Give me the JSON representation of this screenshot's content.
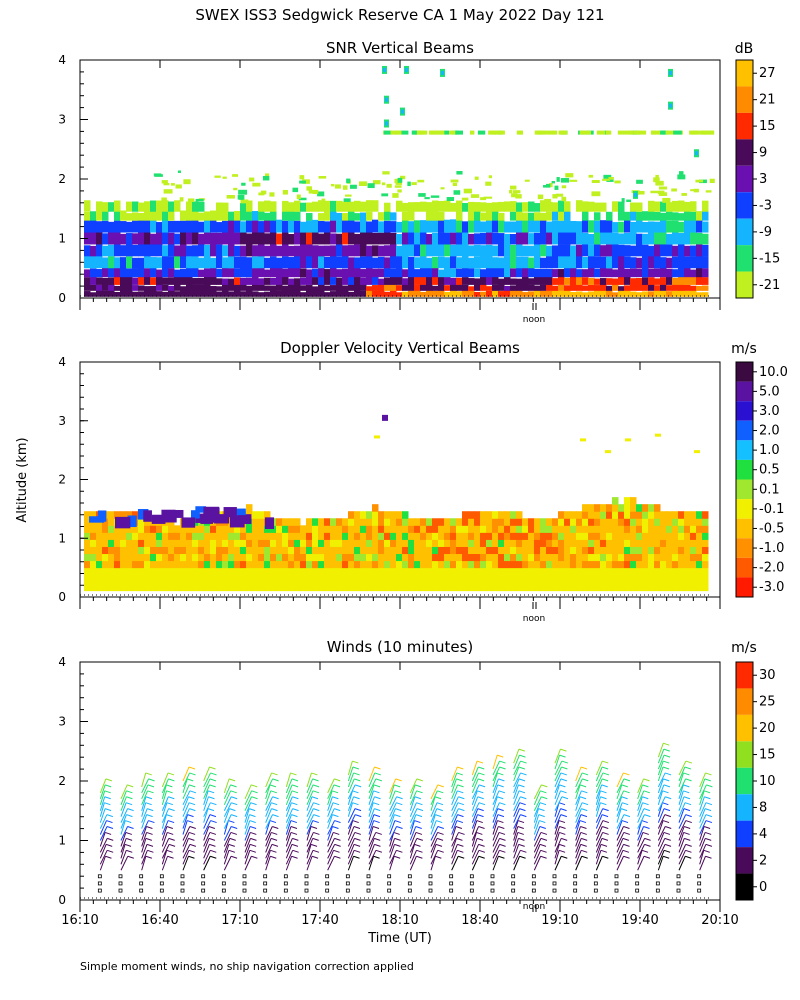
{
  "title": "SWEX ISS3 Sedgwick Reserve CA   1 May 2022 Day 121",
  "footnote": "Simple moment winds, no ship navigation correction applied",
  "y_axis_label": "Altitude (km)",
  "x_axis_label": "Time (UT)",
  "noon_label": "noon",
  "chart_data": [
    {
      "type": "heatmap",
      "title": "SNR Vertical Beams",
      "ylabel": "Altitude (km)",
      "xlabel": "",
      "x_range": [
        "16:10",
        "20:10"
      ],
      "ylim": [
        0,
        4
      ],
      "y_ticks": [
        0,
        1,
        2,
        3,
        4
      ],
      "colorbar": {
        "unit": "dB",
        "labels": [
          "27",
          "21",
          "15",
          "9",
          "3",
          "-3",
          "-9",
          "-15",
          "-21"
        ],
        "colors": [
          "#ffc000",
          "#ff8c00",
          "#ff2a00",
          "#4a0a5a",
          "#6a10b0",
          "#1040ff",
          "#14b4ff",
          "#20e070",
          "#c0f020"
        ]
      },
      "layers": [
        {
          "from_km": 0.0,
          "to_km": 0.1,
          "level": "15 to 27 dB (late afternoon)"
        },
        {
          "from_km": 0.1,
          "to_km": 0.5,
          "level": "3 to 9 dB"
        },
        {
          "from_km": 0.5,
          "to_km": 1.3,
          "level": "-9 to 3 dB"
        },
        {
          "from_km": 1.3,
          "to_km": 1.6,
          "level": "-21 to -15 dB"
        },
        {
          "from_km": 1.6,
          "to_km": 4.0,
          "level": "sparse -21 dB echoes"
        }
      ]
    },
    {
      "type": "heatmap",
      "title": "Doppler Velocity Vertical Beams",
      "ylabel": "Altitude (km)",
      "xlabel": "",
      "x_range": [
        "16:10",
        "20:10"
      ],
      "ylim": [
        0,
        4
      ],
      "y_ticks": [
        0,
        1,
        2,
        3,
        4
      ],
      "colorbar": {
        "unit": "m/s",
        "labels": [
          "10.0",
          "5.0",
          "3.0",
          "2.0",
          "1.0",
          "0.5",
          "0.1",
          "-0.1",
          "-0.5",
          "-1.0",
          "-2.0",
          "-3.0"
        ],
        "colors": [
          "#3a0a40",
          "#5a12a0",
          "#2a10d0",
          "#1060ff",
          "#14c0ff",
          "#20e040",
          "#a0e830",
          "#f0f000",
          "#ffc000",
          "#ff9000",
          "#ff5a00",
          "#ff1a00"
        ]
      },
      "layers": [
        {
          "from_km": 0.1,
          "to_km": 0.5,
          "level": "-0.1 m/s"
        },
        {
          "from_km": 0.5,
          "to_km": 1.4,
          "level": "-0.5 to -1.0 m/s with 0.1 to 0.5 m/s patches"
        },
        {
          "from_km": 1.2,
          "to_km": 1.6,
          "level": "5.0 m/s patches 16:10-17:30"
        }
      ]
    },
    {
      "type": "scatter",
      "title": "Winds (10 minutes)",
      "ylabel": "Altitude (km)",
      "xlabel": "Time (UT)",
      "x_ticks": [
        "16:10",
        "16:40",
        "17:10",
        "17:40",
        "18:10",
        "18:40",
        "19:10",
        "19:40",
        "20:10"
      ],
      "ylim": [
        0,
        4
      ],
      "y_ticks": [
        0,
        1,
        2,
        3,
        4
      ],
      "colorbar": {
        "unit": "m/s",
        "labels": [
          "30",
          "25",
          "20",
          "15",
          "10",
          "8",
          "4",
          "2",
          "0"
        ],
        "colors": [
          "#ff2a00",
          "#ff8c00",
          "#ffc000",
          "#90e020",
          "#20e070",
          "#14b4ff",
          "#1040ff",
          "#4a0a5a",
          "#000000"
        ]
      },
      "profiles_per_hour": 6,
      "top_heights_km": [
        1.9,
        1.8,
        2.0,
        2.0,
        2.1,
        2.1,
        1.9,
        1.8,
        2.0,
        2.0,
        2.0,
        1.9,
        2.2,
        2.1,
        1.9,
        1.9,
        1.8,
        2.1,
        2.2,
        2.3,
        2.4,
        1.8,
        2.4,
        2.1,
        2.2,
        2.0,
        1.9,
        2.5,
        2.2,
        2.0
      ]
    }
  ]
}
